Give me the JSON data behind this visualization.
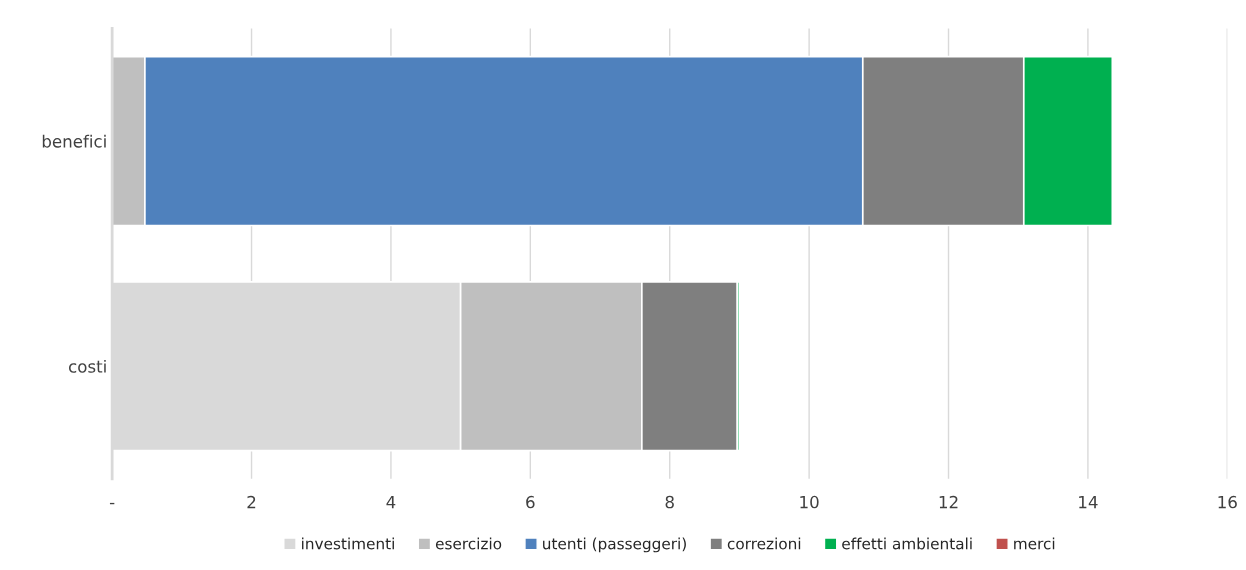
{
  "chart_data": {
    "type": "bar",
    "orientation": "horizontal",
    "stacked": true,
    "categories": [
      "benefici",
      "costi"
    ],
    "series": [
      {
        "name": "investimenti",
        "color": "#d9d9d9",
        "values": [
          0,
          5.0
        ]
      },
      {
        "name": "esercizio",
        "color": "#bfbfbf",
        "values": [
          0.47,
          2.6
        ]
      },
      {
        "name": "utenti (passeggeri)",
        "color": "#4f81bd",
        "values": [
          10.3,
          0
        ]
      },
      {
        "name": "correzioni",
        "color": "#7f7f7f",
        "values": [
          2.31,
          1.37
        ]
      },
      {
        "name": "effetti ambientali",
        "color": "#00b050",
        "values": [
          1.27,
          0.03
        ]
      },
      {
        "name": "merci",
        "color": "#c0504d",
        "values": [
          0,
          0
        ]
      }
    ],
    "xlim": [
      0,
      16
    ],
    "xticks": [
      {
        "value": 0,
        "label": "-"
      },
      2,
      4,
      6,
      8,
      10,
      12,
      14,
      16
    ],
    "grid": "x",
    "legend": "bottom"
  }
}
